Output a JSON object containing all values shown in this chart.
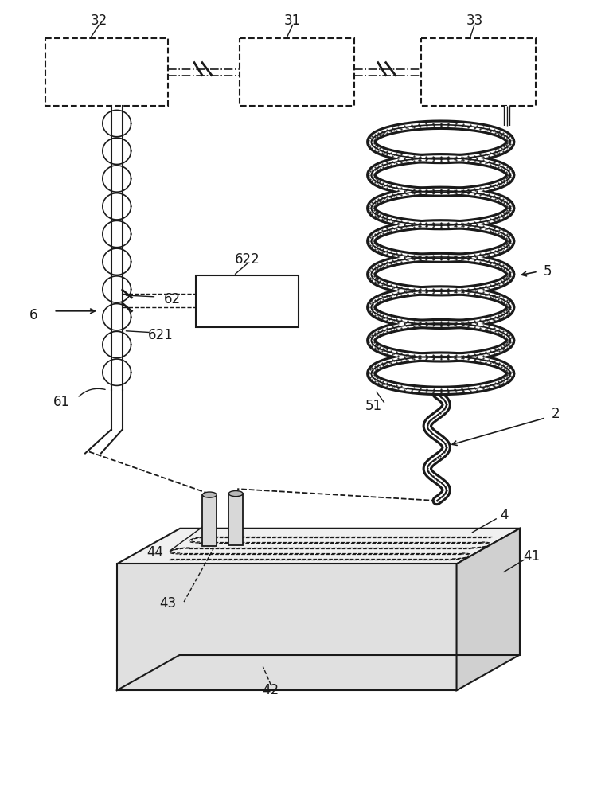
{
  "bg_color": "#ffffff",
  "line_color": "#1a1a1a",
  "lc": "#1a1a1a",
  "fs": 12,
  "figsize": [
    7.55,
    10.0
  ],
  "dpi": 100
}
